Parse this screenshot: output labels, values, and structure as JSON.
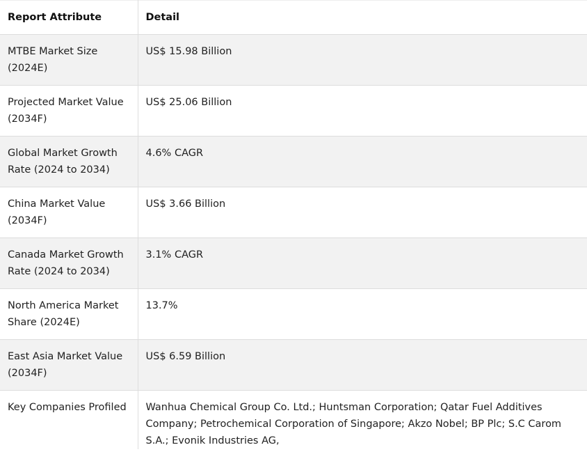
{
  "table": {
    "headers": [
      "Report Attribute",
      "Detail"
    ],
    "rows": [
      {
        "attribute": "MTBE Market Size (2024E)",
        "detail": "US$ 15.98 Billion"
      },
      {
        "attribute": "Projected Market Value (2034F)",
        "detail": "US$ 25.06 Billion"
      },
      {
        "attribute": "Global Market Growth Rate (2024 to 2034)",
        "detail": "4.6% CAGR"
      },
      {
        "attribute": "China Market Value (2034F)",
        "detail": "US$ 3.66 Billion"
      },
      {
        "attribute": "Canada Market Growth Rate (2024 to 2034)",
        "detail": "3.1% CAGR"
      },
      {
        "attribute": "North America Market Share (2024E)",
        "detail": "13.7%"
      },
      {
        "attribute": "East Asia Market Value (2034F)",
        "detail": "US$ 6.59 Billion"
      },
      {
        "attribute": "Key Companies Profiled",
        "detail": "Wanhua Chemical Group Co. Ltd.; Huntsman Corporation; Qatar Fuel Additives Company; Petrochemical Corporation of Singapore; Akzo Nobel; BP Plc; S.C Carom S.A.; Evonik Industries AG,"
      }
    ]
  }
}
